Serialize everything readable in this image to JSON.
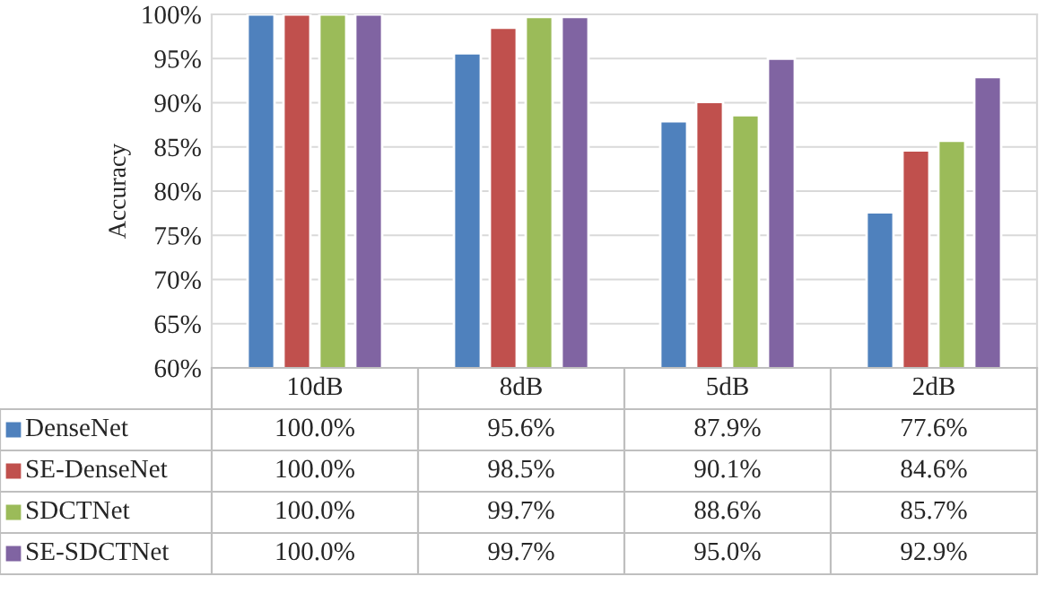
{
  "chart_data": {
    "type": "bar",
    "ylabel": "Accuracy",
    "categories": [
      "10dB",
      "8dB",
      "5dB",
      "2dB"
    ],
    "series": [
      {
        "name": "DenseNet",
        "color": "#4f81bd",
        "values": [
          100.0,
          95.6,
          87.9,
          77.6
        ],
        "value_labels": [
          "100.0%",
          "95.6%",
          "87.9%",
          "77.6%"
        ]
      },
      {
        "name": "SE-DenseNet",
        "color": "#c0504d",
        "values": [
          100.0,
          98.5,
          90.1,
          84.6
        ],
        "value_labels": [
          "100.0%",
          "98.5%",
          "90.1%",
          "84.6%"
        ]
      },
      {
        "name": "SDCTNet",
        "color": "#9bbb59",
        "values": [
          100.0,
          99.7,
          88.6,
          85.7
        ],
        "value_labels": [
          "100.0%",
          "99.7%",
          "88.6%",
          "85.7%"
        ]
      },
      {
        "name": "SE-SDCTNet",
        "color": "#8064a2",
        "values": [
          100.0,
          99.7,
          95.0,
          92.9
        ],
        "value_labels": [
          "100.0%",
          "99.7%",
          "95.0%",
          "92.9%"
        ]
      }
    ],
    "ylim": [
      60,
      100
    ],
    "yticks": [
      {
        "value": 60,
        "label": "60%"
      },
      {
        "value": 65,
        "label": "65%"
      },
      {
        "value": 70,
        "label": "70%"
      },
      {
        "value": 75,
        "label": "75%"
      },
      {
        "value": 80,
        "label": "80%"
      },
      {
        "value": 85,
        "label": "85%"
      },
      {
        "value": 90,
        "label": "90%"
      },
      {
        "value": 95,
        "label": "95%"
      },
      {
        "value": 100,
        "label": "100%"
      }
    ],
    "grid": "y",
    "legend": "bottom"
  }
}
